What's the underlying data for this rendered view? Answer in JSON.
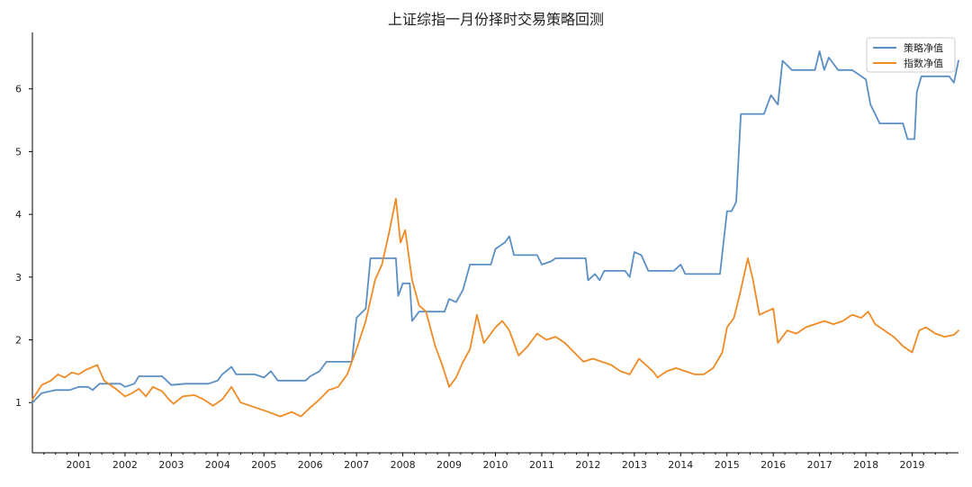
{
  "chart_data": {
    "type": "line",
    "title": "上证综指一月份择时交易策略回测",
    "xlabel": "",
    "ylabel": "",
    "xlim": [
      2000.0,
      2020.0
    ],
    "ylim": [
      0.2,
      6.9
    ],
    "x_ticks": [
      "2001",
      "2002",
      "2003",
      "2004",
      "2005",
      "2006",
      "2007",
      "2008",
      "2009",
      "2010",
      "2011",
      "2012",
      "2013",
      "2014",
      "2015",
      "2016",
      "2017",
      "2018",
      "2019"
    ],
    "y_ticks": [
      "1",
      "2",
      "3",
      "4",
      "5",
      "6"
    ],
    "grid": false,
    "legend_position": "top-right",
    "series": [
      {
        "name": "策略净值",
        "color": "#5b8fc4",
        "points": [
          [
            2000.0,
            1.0
          ],
          [
            2000.2,
            1.15
          ],
          [
            2000.5,
            1.2
          ],
          [
            2000.8,
            1.2
          ],
          [
            2001.0,
            1.25
          ],
          [
            2001.2,
            1.25
          ],
          [
            2001.3,
            1.2
          ],
          [
            2001.45,
            1.3
          ],
          [
            2001.7,
            1.3
          ],
          [
            2001.9,
            1.3
          ],
          [
            2002.0,
            1.25
          ],
          [
            2002.2,
            1.3
          ],
          [
            2002.3,
            1.42
          ],
          [
            2002.5,
            1.42
          ],
          [
            2002.8,
            1.42
          ],
          [
            2003.0,
            1.28
          ],
          [
            2003.3,
            1.3
          ],
          [
            2003.8,
            1.3
          ],
          [
            2004.0,
            1.35
          ],
          [
            2004.1,
            1.45
          ],
          [
            2004.3,
            1.57
          ],
          [
            2004.4,
            1.45
          ],
          [
            2004.8,
            1.45
          ],
          [
            2005.0,
            1.4
          ],
          [
            2005.15,
            1.5
          ],
          [
            2005.3,
            1.35
          ],
          [
            2005.6,
            1.35
          ],
          [
            2005.9,
            1.35
          ],
          [
            2006.0,
            1.42
          ],
          [
            2006.2,
            1.5
          ],
          [
            2006.35,
            1.65
          ],
          [
            2006.6,
            1.65
          ],
          [
            2006.9,
            1.65
          ],
          [
            2007.0,
            2.35
          ],
          [
            2007.2,
            2.5
          ],
          [
            2007.3,
            3.3
          ],
          [
            2007.5,
            3.3
          ],
          [
            2007.65,
            3.3
          ],
          [
            2007.85,
            3.3
          ],
          [
            2007.9,
            2.7
          ],
          [
            2008.0,
            2.9
          ],
          [
            2008.15,
            2.9
          ],
          [
            2008.2,
            2.3
          ],
          [
            2008.35,
            2.45
          ],
          [
            2008.6,
            2.45
          ],
          [
            2008.9,
            2.45
          ],
          [
            2009.0,
            2.65
          ],
          [
            2009.15,
            2.6
          ],
          [
            2009.3,
            2.8
          ],
          [
            2009.45,
            3.2
          ],
          [
            2009.7,
            3.2
          ],
          [
            2009.9,
            3.2
          ],
          [
            2010.0,
            3.45
          ],
          [
            2010.2,
            3.55
          ],
          [
            2010.3,
            3.65
          ],
          [
            2010.4,
            3.35
          ],
          [
            2010.7,
            3.35
          ],
          [
            2010.9,
            3.35
          ],
          [
            2011.0,
            3.2
          ],
          [
            2011.2,
            3.25
          ],
          [
            2011.3,
            3.3
          ],
          [
            2011.5,
            3.3
          ],
          [
            2011.8,
            3.3
          ],
          [
            2011.95,
            3.3
          ],
          [
            2012.0,
            2.95
          ],
          [
            2012.15,
            3.05
          ],
          [
            2012.25,
            2.95
          ],
          [
            2012.35,
            3.1
          ],
          [
            2012.6,
            3.1
          ],
          [
            2012.8,
            3.1
          ],
          [
            2012.9,
            3.0
          ],
          [
            2013.0,
            3.4
          ],
          [
            2013.15,
            3.35
          ],
          [
            2013.3,
            3.1
          ],
          [
            2013.6,
            3.1
          ],
          [
            2013.85,
            3.1
          ],
          [
            2014.0,
            3.2
          ],
          [
            2014.1,
            3.05
          ],
          [
            2014.3,
            3.05
          ],
          [
            2014.6,
            3.05
          ],
          [
            2014.85,
            3.05
          ],
          [
            2015.0,
            4.05
          ],
          [
            2015.1,
            4.05
          ],
          [
            2015.2,
            4.2
          ],
          [
            2015.3,
            5.6
          ],
          [
            2015.6,
            5.6
          ],
          [
            2015.8,
            5.6
          ],
          [
            2015.95,
            5.9
          ],
          [
            2016.1,
            5.75
          ],
          [
            2016.2,
            6.45
          ],
          [
            2016.4,
            6.3
          ],
          [
            2016.7,
            6.3
          ],
          [
            2016.9,
            6.3
          ],
          [
            2017.0,
            6.6
          ],
          [
            2017.1,
            6.3
          ],
          [
            2017.2,
            6.5
          ],
          [
            2017.4,
            6.3
          ],
          [
            2017.7,
            6.3
          ],
          [
            2017.9,
            6.2
          ],
          [
            2018.0,
            6.15
          ],
          [
            2018.1,
            5.75
          ],
          [
            2018.3,
            5.45
          ],
          [
            2018.6,
            5.45
          ],
          [
            2018.8,
            5.45
          ],
          [
            2018.9,
            5.2
          ],
          [
            2019.05,
            5.2
          ],
          [
            2019.1,
            5.95
          ],
          [
            2019.2,
            6.2
          ],
          [
            2019.5,
            6.2
          ],
          [
            2019.8,
            6.2
          ],
          [
            2019.9,
            6.1
          ],
          [
            2020.0,
            6.45
          ]
        ]
      },
      {
        "name": "指数净值",
        "color": "#f08a24",
        "points": [
          [
            2000.0,
            1.05
          ],
          [
            2000.2,
            1.28
          ],
          [
            2000.4,
            1.35
          ],
          [
            2000.55,
            1.45
          ],
          [
            2000.7,
            1.4
          ],
          [
            2000.85,
            1.48
          ],
          [
            2001.0,
            1.45
          ],
          [
            2001.15,
            1.52
          ],
          [
            2001.4,
            1.6
          ],
          [
            2001.55,
            1.35
          ],
          [
            2001.8,
            1.22
          ],
          [
            2002.0,
            1.1
          ],
          [
            2002.15,
            1.15
          ],
          [
            2002.3,
            1.22
          ],
          [
            2002.45,
            1.1
          ],
          [
            2002.6,
            1.25
          ],
          [
            2002.8,
            1.18
          ],
          [
            2002.95,
            1.05
          ],
          [
            2003.05,
            0.98
          ],
          [
            2003.25,
            1.1
          ],
          [
            2003.5,
            1.12
          ],
          [
            2003.7,
            1.05
          ],
          [
            2003.9,
            0.95
          ],
          [
            2004.1,
            1.05
          ],
          [
            2004.3,
            1.25
          ],
          [
            2004.5,
            1.0
          ],
          [
            2004.7,
            0.95
          ],
          [
            2004.9,
            0.9
          ],
          [
            2005.1,
            0.85
          ],
          [
            2005.35,
            0.78
          ],
          [
            2005.6,
            0.85
          ],
          [
            2005.8,
            0.78
          ],
          [
            2006.0,
            0.92
          ],
          [
            2006.2,
            1.05
          ],
          [
            2006.4,
            1.2
          ],
          [
            2006.6,
            1.25
          ],
          [
            2006.8,
            1.45
          ],
          [
            2007.0,
            1.85
          ],
          [
            2007.2,
            2.3
          ],
          [
            2007.4,
            2.95
          ],
          [
            2007.55,
            3.2
          ],
          [
            2007.7,
            3.7
          ],
          [
            2007.85,
            4.25
          ],
          [
            2007.95,
            3.55
          ],
          [
            2008.05,
            3.75
          ],
          [
            2008.2,
            2.95
          ],
          [
            2008.35,
            2.55
          ],
          [
            2008.5,
            2.45
          ],
          [
            2008.7,
            1.9
          ],
          [
            2008.85,
            1.6
          ],
          [
            2009.0,
            1.25
          ],
          [
            2009.15,
            1.4
          ],
          [
            2009.3,
            1.65
          ],
          [
            2009.45,
            1.85
          ],
          [
            2009.6,
            2.4
          ],
          [
            2009.75,
            1.95
          ],
          [
            2009.9,
            2.1
          ],
          [
            2010.0,
            2.2
          ],
          [
            2010.15,
            2.3
          ],
          [
            2010.3,
            2.15
          ],
          [
            2010.5,
            1.75
          ],
          [
            2010.7,
            1.9
          ],
          [
            2010.9,
            2.1
          ],
          [
            2011.1,
            2.0
          ],
          [
            2011.3,
            2.05
          ],
          [
            2011.5,
            1.95
          ],
          [
            2011.7,
            1.8
          ],
          [
            2011.9,
            1.65
          ],
          [
            2012.1,
            1.7
          ],
          [
            2012.3,
            1.65
          ],
          [
            2012.5,
            1.6
          ],
          [
            2012.7,
            1.5
          ],
          [
            2012.9,
            1.45
          ],
          [
            2013.1,
            1.7
          ],
          [
            2013.25,
            1.6
          ],
          [
            2013.4,
            1.5
          ],
          [
            2013.5,
            1.4
          ],
          [
            2013.7,
            1.5
          ],
          [
            2013.9,
            1.55
          ],
          [
            2014.1,
            1.5
          ],
          [
            2014.3,
            1.45
          ],
          [
            2014.5,
            1.45
          ],
          [
            2014.7,
            1.55
          ],
          [
            2014.9,
            1.8
          ],
          [
            2015.0,
            2.2
          ],
          [
            2015.15,
            2.35
          ],
          [
            2015.3,
            2.8
          ],
          [
            2015.45,
            3.3
          ],
          [
            2015.55,
            3.0
          ],
          [
            2015.7,
            2.4
          ],
          [
            2015.85,
            2.45
          ],
          [
            2016.0,
            2.5
          ],
          [
            2016.1,
            1.95
          ],
          [
            2016.3,
            2.15
          ],
          [
            2016.5,
            2.1
          ],
          [
            2016.7,
            2.2
          ],
          [
            2016.9,
            2.25
          ],
          [
            2017.1,
            2.3
          ],
          [
            2017.3,
            2.25
          ],
          [
            2017.5,
            2.3
          ],
          [
            2017.7,
            2.4
          ],
          [
            2017.9,
            2.35
          ],
          [
            2018.05,
            2.45
          ],
          [
            2018.2,
            2.25
          ],
          [
            2018.4,
            2.15
          ],
          [
            2018.6,
            2.05
          ],
          [
            2018.8,
            1.9
          ],
          [
            2019.0,
            1.8
          ],
          [
            2019.15,
            2.15
          ],
          [
            2019.3,
            2.2
          ],
          [
            2019.5,
            2.1
          ],
          [
            2019.7,
            2.05
          ],
          [
            2019.9,
            2.08
          ],
          [
            2020.0,
            2.15
          ]
        ]
      }
    ]
  }
}
